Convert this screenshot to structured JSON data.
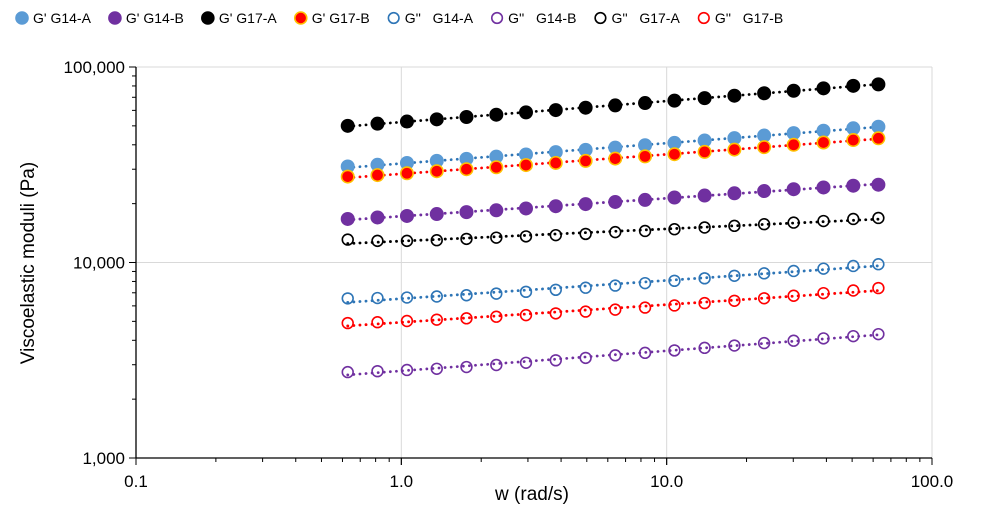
{
  "chart_data": {
    "type": "scatter",
    "xscale": "log",
    "yscale": "log",
    "xlim": [
      0.1,
      100
    ],
    "ylim": [
      1000,
      100000
    ],
    "xlabel": "w (rad/s)",
    "ylabel": "Viscoelastic moduli (Pa)",
    "xticks": [
      "0.1",
      "1.0",
      "10.0",
      "100.0"
    ],
    "yticks": [
      "1,000",
      "10,000",
      "100,000"
    ],
    "grid": true,
    "legend_position": "top",
    "x": [
      0.628,
      0.813,
      1.05,
      1.36,
      1.76,
      2.28,
      2.95,
      3.82,
      4.95,
      6.4,
      8.29,
      10.7,
      13.9,
      18.0,
      23.3,
      30.1,
      39.0,
      50.5,
      62.8
    ],
    "series": [
      {
        "name": "G' G14-A",
        "color": "#5B9BD5",
        "fill": "#5B9BD5",
        "stroke": "#5B9BD5",
        "trend_color": "#2E75B6",
        "values": [
          31000,
          31600,
          32300,
          33100,
          33900,
          34800,
          35700,
          36700,
          37700,
          38700,
          39800,
          40900,
          42100,
          43300,
          44600,
          45900,
          47200,
          48600,
          49500
        ]
      },
      {
        "name": "G' G14-B",
        "color": "#7030A0",
        "fill": "#7030A0",
        "stroke": "#7030A0",
        "trend_color": "#7030A0",
        "values": [
          16700,
          17000,
          17300,
          17700,
          18100,
          18500,
          18900,
          19400,
          19900,
          20400,
          20900,
          21500,
          22000,
          22600,
          23200,
          23700,
          24200,
          24700,
          25000
        ]
      },
      {
        "name": "G' G17-A",
        "color": "#000000",
        "fill": "#000000",
        "stroke": "#000000",
        "trend_color": "#000000",
        "values": [
          50000,
          51300,
          52600,
          54000,
          55500,
          57000,
          58600,
          60200,
          61900,
          63600,
          65400,
          67300,
          69300,
          71300,
          73400,
          75600,
          77800,
          80100,
          81500
        ]
      },
      {
        "name": "G' G17-B",
        "color": "#FF0000",
        "fill": "#FF0000",
        "stroke": "#FFC000",
        "trend_color": "#FF0000",
        "values": [
          27500,
          28000,
          28600,
          29300,
          30000,
          30700,
          31500,
          32300,
          33100,
          34000,
          34900,
          35800,
          36800,
          37800,
          38900,
          40000,
          41100,
          42300,
          43200
        ]
      },
      {
        "name": "G''   G14-A",
        "color": "#2E75B6",
        "fill": "none",
        "stroke": "#2E75B6",
        "trend_color": "#2E75B6",
        "values": [
          6550,
          6580,
          6620,
          6700,
          6800,
          6930,
          7080,
          7250,
          7430,
          7620,
          7840,
          8060,
          8300,
          8550,
          8800,
          9050,
          9300,
          9600,
          9800
        ]
      },
      {
        "name": "G''   G14-B",
        "color": "#7030A0",
        "fill": "none",
        "stroke": "#7030A0",
        "trend_color": "#7030A0",
        "values": [
          2750,
          2780,
          2820,
          2860,
          2920,
          2990,
          3070,
          3160,
          3250,
          3350,
          3450,
          3550,
          3660,
          3760,
          3870,
          3980,
          4090,
          4200,
          4300
        ]
      },
      {
        "name": "G''   G17-A",
        "color": "#000000",
        "fill": "none",
        "stroke": "#000000",
        "trend_color": "#000000",
        "values": [
          13100,
          12900,
          12900,
          13000,
          13200,
          13400,
          13600,
          13800,
          14000,
          14300,
          14500,
          14800,
          15100,
          15400,
          15700,
          16000,
          16300,
          16700,
          16900
        ]
      },
      {
        "name": "G''   G17-B",
        "color": "#FF0000",
        "fill": "none",
        "stroke": "#FF0000",
        "trend_color": "#FF0000",
        "values": [
          4900,
          4950,
          5020,
          5100,
          5180,
          5280,
          5380,
          5490,
          5610,
          5740,
          5880,
          6030,
          6200,
          6370,
          6560,
          6760,
          6970,
          7190,
          7400
        ]
      }
    ]
  }
}
